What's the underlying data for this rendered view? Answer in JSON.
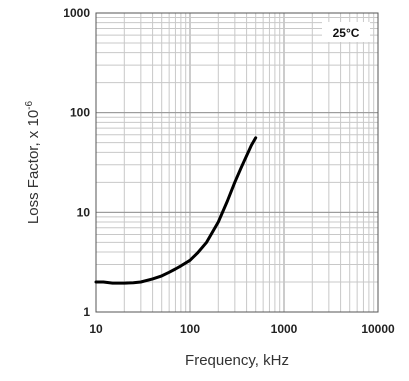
{
  "chart_data": {
    "type": "line",
    "xlabel": "Frequency, kHz",
    "ylabel": "Loss Factor, x 10",
    "ylabel_exponent": "-6",
    "xscale": "log",
    "yscale": "log",
    "xlim": [
      10,
      10000
    ],
    "ylim": [
      1,
      1000
    ],
    "grid": true,
    "xticks": [
      "10",
      "100",
      "1000",
      "10000"
    ],
    "yticks": [
      "1",
      "10",
      "100",
      "1000"
    ],
    "legend": {
      "label": "25°C",
      "placement": "top-right"
    },
    "series": [
      {
        "color": "#000000",
        "x": [
          10,
          12,
          15,
          20,
          25,
          30,
          40,
          50,
          60,
          70,
          80,
          100,
          120,
          150,
          200,
          250,
          300,
          350,
          400,
          450,
          500
        ],
        "y": [
          2.0,
          2.0,
          1.95,
          1.95,
          1.97,
          2.0,
          2.15,
          2.3,
          2.5,
          2.7,
          2.9,
          3.3,
          3.9,
          5.0,
          8.0,
          13,
          20,
          28,
          37,
          47,
          56
        ]
      }
    ]
  }
}
